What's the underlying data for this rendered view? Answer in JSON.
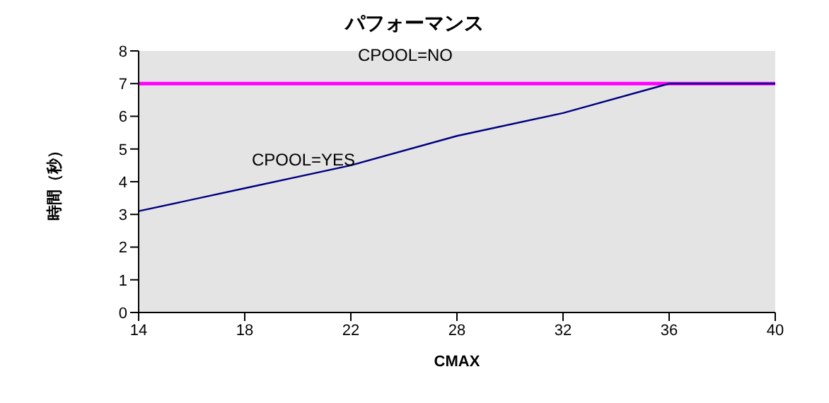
{
  "chart_data": {
    "type": "line",
    "title": "パフォーマンス",
    "xlabel": "CMAX",
    "ylabel": "時間（秒）",
    "categories": [
      "14",
      "18",
      "22",
      "28",
      "32",
      "36",
      "40"
    ],
    "series": [
      {
        "name": "CPOOL=NO",
        "color": "#ff00ff",
        "values": [
          7,
          7,
          7,
          7,
          7,
          7,
          7
        ]
      },
      {
        "name": "CPOOL=YES",
        "color": "#000080",
        "values": [
          3.1,
          3.8,
          4.5,
          5.4,
          6.1,
          7.0,
          7.0
        ]
      }
    ],
    "ylim": [
      0,
      8
    ],
    "yticks": [
      0,
      1,
      2,
      3,
      4,
      5,
      6,
      7,
      8
    ],
    "grid": false,
    "legend": false,
    "marker": "none",
    "line_style": "solid"
  }
}
